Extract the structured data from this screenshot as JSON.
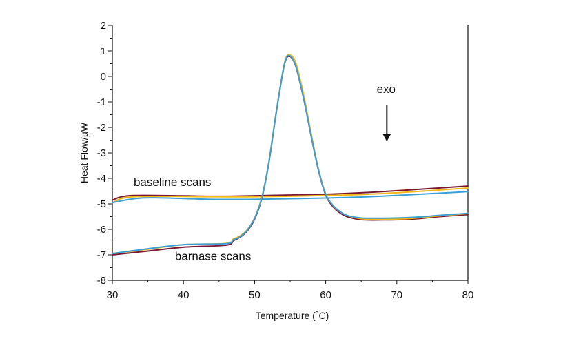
{
  "chart_data": {
    "type": "line",
    "title": "",
    "xlabel": "Temperature (˚C)",
    "ylabel": "Heat Flow/µW",
    "xlim": [
      30,
      80
    ],
    "ylim": [
      -8,
      2
    ],
    "xticks": [
      "30",
      "40",
      "50",
      "60",
      "70",
      "80"
    ],
    "yticks": [
      "2",
      "1",
      "0",
      "-1",
      "-2",
      "-3",
      "-4",
      "-5",
      "-6",
      "-7",
      "-8"
    ],
    "grid": false,
    "annotations": [
      {
        "text": "baseline scans",
        "x": 33,
        "y": -4.3
      },
      {
        "text": "barnase scans",
        "x": 38.8,
        "y": -7.2
      },
      {
        "text": "exo",
        "x": 68.5,
        "y": -0.65,
        "arrow_to_y": -2.55
      }
    ],
    "series": [
      {
        "color": "#7b1832",
        "x": [
          30,
          33,
          44,
          50,
          60,
          66,
          72,
          80
        ],
        "y": [
          -4.85,
          -4.67,
          -4.7,
          -4.68,
          -4.62,
          -4.55,
          -4.45,
          -4.3
        ]
      },
      {
        "color": "#f2b817",
        "x": [
          30,
          33,
          44,
          50,
          60,
          66,
          72,
          80
        ],
        "y": [
          -4.95,
          -4.72,
          -4.72,
          -4.72,
          -4.67,
          -4.62,
          -4.53,
          -4.38
        ]
      },
      {
        "color": "#3aa0d8",
        "x": [
          30,
          33,
          36,
          44,
          50,
          60,
          66,
          72,
          80
        ],
        "y": [
          -4.95,
          -4.8,
          -4.76,
          -4.82,
          -4.82,
          -4.77,
          -4.72,
          -4.64,
          -4.52
        ]
      },
      {
        "color": "#7b1832",
        "x": [
          30,
          35,
          40,
          46,
          47,
          48,
          49,
          50,
          51,
          52,
          53,
          54,
          54.5,
          55,
          55.5,
          56,
          57,
          58,
          59,
          60,
          61,
          62,
          63,
          65,
          68,
          72,
          76,
          80
        ],
        "y": [
          -7.0,
          -6.85,
          -6.7,
          -6.62,
          -6.45,
          -6.3,
          -6.05,
          -5.6,
          -4.8,
          -3.4,
          -1.5,
          0.2,
          0.72,
          0.78,
          0.6,
          0.2,
          -1.0,
          -2.4,
          -3.7,
          -4.65,
          -5.1,
          -5.35,
          -5.5,
          -5.62,
          -5.63,
          -5.6,
          -5.5,
          -5.42
        ]
      },
      {
        "color": "#f2b817",
        "x": [
          30,
          35,
          40,
          46,
          47,
          48,
          49,
          50,
          51,
          52,
          53,
          54,
          54.5,
          55,
          55.5,
          56,
          57,
          58,
          59,
          60,
          61,
          62,
          63,
          65,
          68,
          72,
          76,
          80
        ],
        "y": [
          -6.95,
          -6.78,
          -6.6,
          -6.55,
          -6.38,
          -6.25,
          -6.0,
          -5.55,
          -4.75,
          -3.35,
          -1.45,
          0.25,
          0.78,
          0.84,
          0.72,
          0.35,
          -0.85,
          -2.3,
          -3.65,
          -4.6,
          -5.05,
          -5.3,
          -5.45,
          -5.58,
          -5.6,
          -5.57,
          -5.47,
          -5.38
        ]
      },
      {
        "color": "#3aa0d8",
        "x": [
          30,
          35,
          40,
          46,
          47,
          48,
          49,
          50,
          51,
          52,
          53,
          54,
          54.5,
          55,
          55.5,
          56,
          57,
          58,
          59,
          60,
          61,
          62,
          63,
          65,
          68,
          72,
          76,
          80
        ],
        "y": [
          -6.95,
          -6.76,
          -6.6,
          -6.56,
          -6.42,
          -6.28,
          -6.02,
          -5.57,
          -4.78,
          -3.38,
          -1.48,
          0.22,
          0.75,
          0.8,
          0.62,
          0.22,
          -0.98,
          -2.38,
          -3.68,
          -4.63,
          -5.05,
          -5.3,
          -5.45,
          -5.55,
          -5.56,
          -5.53,
          -5.45,
          -5.37
        ]
      }
    ]
  }
}
